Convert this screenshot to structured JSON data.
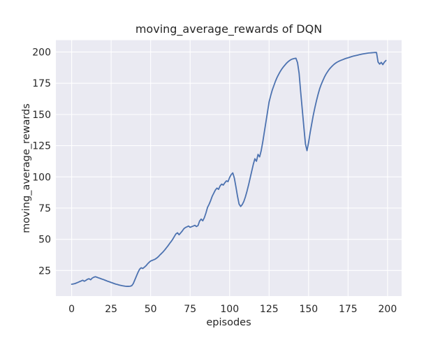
{
  "chart_data": {
    "type": "line",
    "title": "moving_average_rewards of DQN",
    "xlabel": "episodes",
    "ylabel": "moving_average_rewards",
    "style": "seaborn-darkgrid",
    "grid": true,
    "legend": "none",
    "x_ticks": [
      0,
      25,
      50,
      75,
      100,
      125,
      150,
      175,
      200
    ],
    "y_ticks": [
      25,
      50,
      75,
      100,
      125,
      150,
      175,
      200
    ],
    "xlim": [
      -10,
      208.9
    ],
    "ylim": [
      4.5,
      209.5
    ],
    "colors": {
      "line": "#4C72B0",
      "plot_background": "#EAEAF2",
      "gridline": "#FFFFFF",
      "figure_background": "#FFFFFF",
      "text": "#262626"
    },
    "series": [
      {
        "name": "DQN",
        "x_start": 0,
        "x_step": 1,
        "values": [
          14.0,
          14.2,
          14.5,
          15.0,
          15.5,
          16.1,
          16.6,
          17.2,
          16.4,
          17.1,
          18.0,
          18.4,
          17.6,
          18.9,
          19.6,
          20.0,
          19.6,
          19.1,
          18.7,
          18.2,
          17.8,
          17.3,
          16.8,
          16.3,
          15.9,
          15.4,
          15.0,
          14.5,
          14.1,
          13.8,
          13.4,
          13.1,
          12.8,
          12.6,
          12.4,
          12.3,
          12.3,
          12.4,
          12.8,
          14.5,
          17.5,
          20.5,
          23.5,
          26.0,
          27.2,
          26.6,
          27.6,
          28.7,
          30.2,
          31.5,
          32.6,
          33.1,
          33.6,
          34.2,
          35.1,
          36.2,
          37.6,
          38.8,
          40.1,
          41.6,
          43.2,
          44.8,
          46.6,
          48.2,
          50.1,
          52.2,
          54.3,
          55.2,
          53.6,
          55.1,
          56.6,
          58.4,
          59.4,
          60.0,
          60.6,
          59.6,
          60.1,
          60.6,
          61.2,
          60.2,
          61.0,
          64.6,
          66.2,
          64.8,
          67.3,
          71.0,
          75.5,
          78.0,
          81.0,
          84.5,
          87.0,
          89.5,
          91.0,
          90.0,
          92.8,
          94.2,
          93.4,
          95.3,
          96.8,
          96.2,
          99.5,
          101.8,
          103.2,
          99.0,
          92.0,
          84.5,
          78.2,
          76.3,
          77.8,
          80.3,
          84.0,
          88.5,
          93.5,
          99.0,
          104.5,
          110.0,
          114.5,
          112.5,
          118.0,
          116.0,
          121.0,
          128.0,
          136.0,
          144.0,
          152.0,
          160.0,
          165.0,
          169.5,
          173.0,
          176.5,
          179.5,
          182.0,
          184.3,
          186.3,
          188.0,
          189.5,
          191.0,
          192.2,
          193.2,
          194.0,
          194.5,
          194.8,
          195.0,
          191.5,
          183.0,
          168.0,
          154.0,
          140.0,
          126.5,
          121.0,
          127.5,
          135.5,
          142.5,
          149.5,
          155.5,
          161.0,
          166.0,
          170.5,
          174.0,
          177.0,
          179.8,
          182.2,
          184.2,
          186.0,
          187.5,
          188.8,
          190.0,
          191.0,
          191.8,
          192.5,
          193.1,
          193.6,
          194.1,
          194.6,
          195.0,
          195.4,
          195.8,
          196.2,
          196.6,
          196.9,
          197.2,
          197.5,
          197.8,
          198.1,
          198.4,
          198.6,
          198.8,
          199.0,
          199.2,
          199.3,
          199.4,
          199.5,
          199.6,
          199.6,
          192.0,
          190.3,
          191.7,
          189.9,
          191.9,
          193.2
        ]
      }
    ]
  }
}
